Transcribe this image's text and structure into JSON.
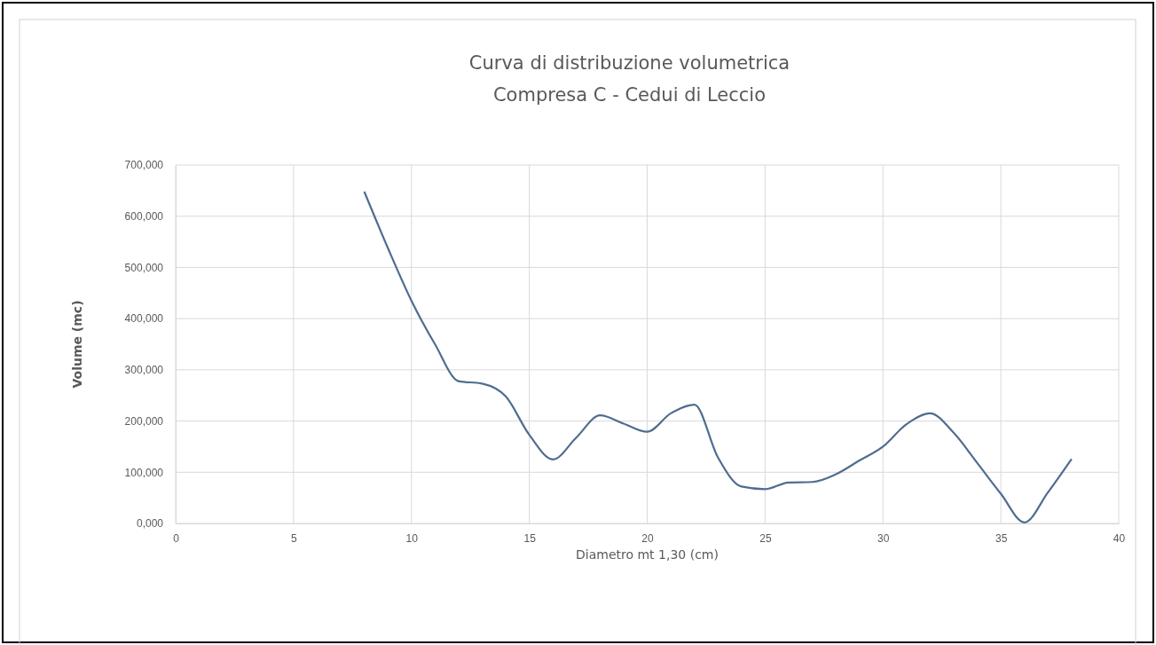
{
  "chart_data": {
    "type": "line",
    "title": "Curva di distribuzione volumetrica",
    "subtitle": "Compresa C - Cedui di Leccio",
    "xlabel": "Diametro mt 1,30 (cm)",
    "ylabel": "Volume (mc)",
    "x": [
      8,
      9,
      10,
      11,
      12,
      13,
      14,
      15,
      16,
      17,
      18,
      19,
      20,
      21,
      22,
      23,
      24,
      25,
      26,
      27,
      28,
      29,
      30,
      31,
      32,
      33,
      34,
      35,
      36,
      37,
      38
    ],
    "series": [
      {
        "color": "#4f6d8f",
        "values": [
          648,
          538,
          435,
          350,
          278,
          273,
          248,
          173,
          125,
          168,
          211,
          195,
          179,
          215,
          232,
          129,
          72,
          67,
          80,
          81,
          96,
          123,
          150,
          194,
          215,
          177,
          118,
          58,
          2,
          61,
          126
        ]
      }
    ],
    "xlim": [
      0,
      40
    ],
    "xticks": [
      0,
      5,
      10,
      15,
      20,
      25,
      30,
      35,
      40
    ],
    "ylim": [
      0,
      700
    ],
    "yticks": [
      {
        "value": 0,
        "label": "0,000"
      },
      {
        "value": 100,
        "label": "100,000"
      },
      {
        "value": 200,
        "label": "200,000"
      },
      {
        "value": 300,
        "label": "300,000"
      },
      {
        "value": 400,
        "label": "400,000"
      },
      {
        "value": 500,
        "label": "500,000"
      },
      {
        "value": 600,
        "label": "600,000"
      },
      {
        "value": 700,
        "label": "700,000"
      }
    ],
    "grid": true,
    "marker": "none",
    "line_style": "solid"
  }
}
